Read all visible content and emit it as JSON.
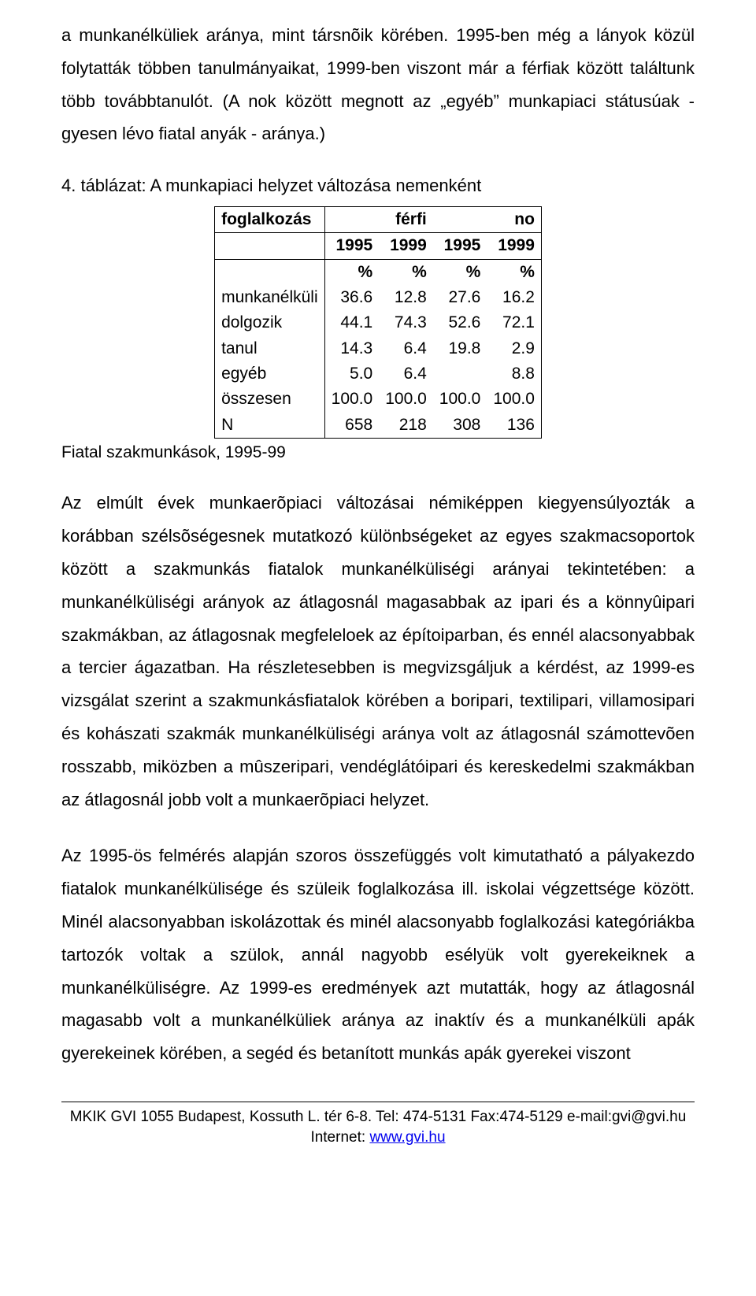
{
  "paragraphs": {
    "p1": "a munkanélküliek aránya, mint társnõik körében. 1995-ben még a lányok közül folytatták többen tanulmányaikat, 1999-ben viszont már a férfiak között találtunk több továbbtanulót. (A nok között megnott az „egyéb” munkapiaci státusúak - gyesen lévo fiatal anyák - aránya.)",
    "p2": "Az elmúlt évek munkaerõpiaci változásai némiképpen kiegyensúlyozták a korábban szélsõségesnek mutatkozó különbségeket az egyes szakmacsoportok között a szakmunkás fiatalok munkanélküliségi arányai tekintetében: a munkanélküliségi arányok az átlagosnál magasabbak az ipari és a könnyûipari szakmákban, az átlagosnak megfeleloek az építoiparban, és ennél alacsonyabbak a tercier ágazatban. Ha részletesebben is megvizsgáljuk a kérdést, az 1999-es vizsgálat szerint a szakmunkásfiatalok körében a boripari, textilipari, villamosipari és kohászati szakmák munkanélküliségi aránya volt az átlagosnál számottevõen rosszabb, miközben a mûszeripari, vendéglátóipari és kereskedelmi szakmákban az átlagosnál jobb volt a munkaerõpiaci helyzet.",
    "p3": "Az 1995-ös felmérés alapján szoros összefüggés volt kimutatható a pályakezdo fiatalok munkanélkülisége és szüleik foglalkozása ill. iskolai végzettsége között. Minél alacsonyabban iskolázottak és minél alacsonyabb foglalkozási kategóriákba tartozók voltak a szülok, annál nagyobb esélyük volt gyerekeiknek a munkanélküliségre. Az 1999-es eredmények azt mutatták, hogy az átlagosnál magasabb volt a munkanélküliek aránya az inaktív és a munkanélküli apák gyerekeinek körében, a segéd és betanított munkás apák gyerekei viszont"
  },
  "table": {
    "caption": "4. táblázat: A munkapiaci helyzet változása nemenként",
    "header": {
      "c0": "foglalkozás",
      "c1": "férfi",
      "c2": "no",
      "years": [
        "1995",
        "1999",
        "1995",
        "1999"
      ],
      "pct": "%"
    },
    "rows": [
      {
        "label": "munkanélküli",
        "v": [
          "36.6",
          "12.8",
          "27.6",
          "16.2"
        ]
      },
      {
        "label": "dolgozik",
        "v": [
          "44.1",
          "74.3",
          "52.6",
          "72.1"
        ]
      },
      {
        "label": "tanul",
        "v": [
          "14.3",
          "6.4",
          "19.8",
          "2.9"
        ]
      },
      {
        "label": "egyéb",
        "v": [
          "5.0",
          "6.4",
          "",
          "8.8"
        ]
      },
      {
        "label": "összesen",
        "v": [
          "100.0",
          "100.0",
          "100.0",
          "100.0"
        ]
      },
      {
        "label": "N",
        "v": [
          "658",
          "218",
          "308",
          "136"
        ]
      }
    ],
    "source": "Fiatal szakmunkások, 1995-99"
  },
  "footer": {
    "line1": "MKIK GVI  1055 Budapest, Kossuth L. tér 6-8.  Tel: 474-5131  Fax:474-5129  e-mail:gvi@gvi.hu",
    "line2_prefix": "Internet: ",
    "link": "www.gvi.hu"
  }
}
